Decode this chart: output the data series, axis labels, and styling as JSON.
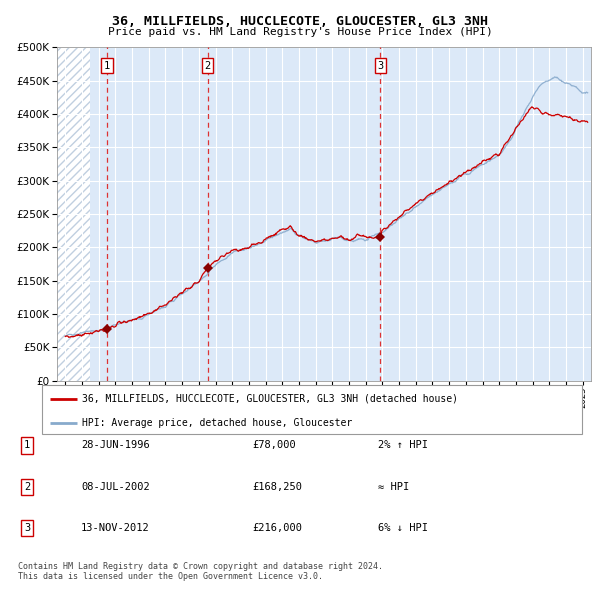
{
  "title": "36, MILLFIELDS, HUCCLECOTE, GLOUCESTER, GL3 3NH",
  "subtitle": "Price paid vs. HM Land Registry's House Price Index (HPI)",
  "hpi_label": "HPI: Average price, detached house, Gloucester",
  "price_label": "36, MILLFIELDS, HUCCLECOTE, GLOUCESTER, GL3 3NH (detached house)",
  "sales": [
    {
      "num": 1,
      "date": "28-JUN-1996",
      "price": 78000,
      "rel": "2% ↑ HPI",
      "year": 1996.49
    },
    {
      "num": 2,
      "date": "08-JUL-2002",
      "price": 168250,
      "rel": "≈ HPI",
      "year": 2002.52
    },
    {
      "num": 3,
      "date": "13-NOV-2012",
      "price": 216000,
      "rel": "6% ↓ HPI",
      "year": 2012.87
    }
  ],
  "ylim": [
    0,
    500000
  ],
  "yticks": [
    0,
    50000,
    100000,
    150000,
    200000,
    250000,
    300000,
    350000,
    400000,
    450000,
    500000
  ],
  "ytick_labels": [
    "£0",
    "£50K",
    "£100K",
    "£150K",
    "£200K",
    "£250K",
    "£300K",
    "£350K",
    "£400K",
    "£450K",
    "£500K"
  ],
  "xlim_start": 1993.5,
  "xlim_end": 2025.5,
  "plot_bg": "#dce9f8",
  "red_line_color": "#cc0000",
  "blue_line_color": "#88aacc",
  "marker_color": "#880000",
  "dashed_line_color": "#dd3333",
  "hatch_color": "#c0cfe0",
  "footnote": "Contains HM Land Registry data © Crown copyright and database right 2024.\nThis data is licensed under the Open Government Licence v3.0.",
  "rows": [
    [
      1,
      "28-JUN-1996",
      "£78,000",
      "2% ↑ HPI"
    ],
    [
      2,
      "08-JUL-2002",
      "£168,250",
      "≈ HPI"
    ],
    [
      3,
      "13-NOV-2012",
      "£216,000",
      "6% ↓ HPI"
    ]
  ]
}
